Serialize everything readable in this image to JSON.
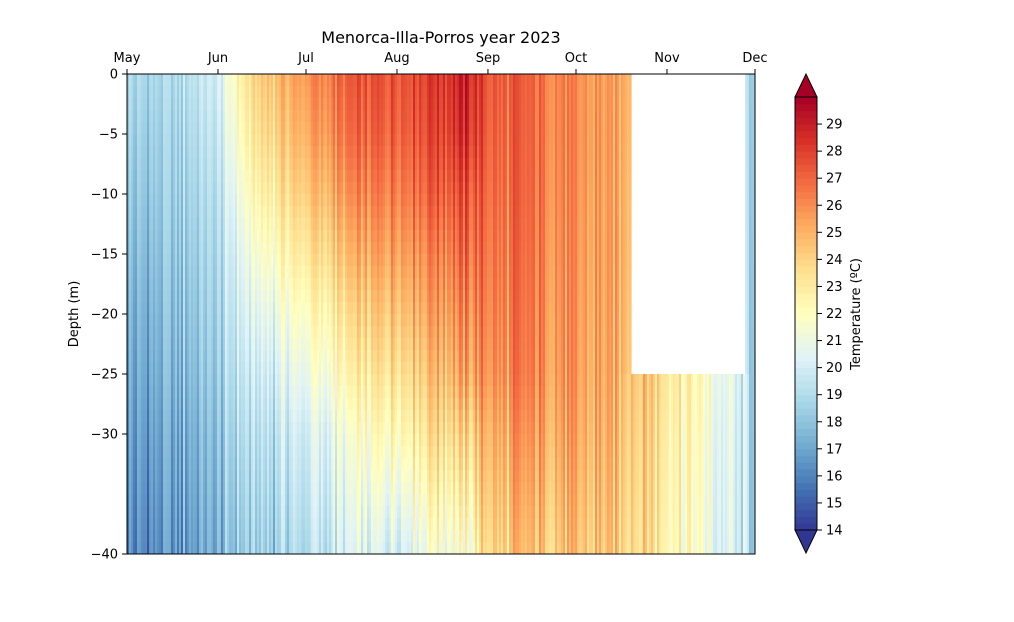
{
  "chart_data": {
    "type": "heatmap",
    "title": "Menorca-Illa-Porros year 2023",
    "xlabel": "",
    "ylabel": "Depth (m)",
    "x_ticks": [
      "May",
      "Jun",
      "Jul",
      "Aug",
      "Sep",
      "Oct",
      "Nov",
      "Dec"
    ],
    "x_range": [
      "2023-05-01",
      "2023-12-01"
    ],
    "x_axis_position": "top",
    "y_ticks": [
      0,
      -5,
      -10,
      -15,
      -20,
      -25,
      -30,
      -40
    ],
    "ylim": [
      -40,
      0
    ],
    "depth_levels_m": [
      0,
      -5,
      -10,
      -15,
      -20,
      -25,
      -30,
      -40
    ],
    "colorbar": {
      "label": "Temperature (ºC)",
      "range": [
        14,
        30
      ],
      "ticks": [
        14,
        15,
        16,
        17,
        18,
        19,
        20,
        21,
        22,
        23,
        24,
        25,
        26,
        27,
        28,
        29
      ],
      "extend": "both",
      "colormap": "RdYlBu_r"
    },
    "profiles": [
      {
        "date": "2023-05-01",
        "temps": [
          18.8,
          18.4,
          18.0,
          17.6,
          17.2,
          16.9,
          16.6,
          16.0
        ]
      },
      {
        "date": "2023-05-15",
        "temps": [
          18.8,
          18.5,
          18.3,
          18.0,
          17.7,
          17.4,
          17.0,
          16.4
        ]
      },
      {
        "date": "2023-06-01",
        "temps": [
          20.0,
          19.6,
          19.2,
          18.9,
          18.6,
          18.3,
          17.9,
          17.3
        ]
      },
      {
        "date": "2023-06-08",
        "temps": [
          22.5,
          21.8,
          21.0,
          20.3,
          19.8,
          19.3,
          18.8,
          18.0
        ]
      },
      {
        "date": "2023-06-15",
        "temps": [
          24.2,
          23.6,
          22.7,
          21.6,
          20.6,
          19.8,
          19.2,
          18.4
        ]
      },
      {
        "date": "2023-07-01",
        "temps": [
          25.8,
          25.2,
          24.3,
          23.2,
          22.0,
          21.0,
          20.0,
          19.0
        ]
      },
      {
        "date": "2023-07-15",
        "temps": [
          27.0,
          26.5,
          25.6,
          24.5,
          23.3,
          22.2,
          21.0,
          19.8
        ]
      },
      {
        "date": "2023-08-01",
        "temps": [
          27.8,
          27.5,
          26.8,
          26.0,
          25.0,
          24.0,
          22.8,
          20.5
        ]
      },
      {
        "date": "2023-08-15",
        "temps": [
          28.3,
          28.0,
          27.4,
          26.5,
          25.8,
          25.0,
          24.0,
          21.8
        ]
      },
      {
        "date": "2023-08-25",
        "temps": [
          29.0,
          28.6,
          27.6,
          27.0,
          26.2,
          25.5,
          24.0,
          21.5
        ]
      },
      {
        "date": "2023-09-01",
        "temps": [
          27.3,
          27.1,
          26.8,
          26.5,
          26.2,
          25.8,
          25.0,
          23.8
        ]
      },
      {
        "date": "2023-09-15",
        "temps": [
          26.8,
          26.7,
          26.6,
          26.4,
          26.2,
          26.0,
          25.4,
          24.2
        ]
      },
      {
        "date": "2023-10-01",
        "temps": [
          26.0,
          26.0,
          25.9,
          25.8,
          25.7,
          25.6,
          25.3,
          24.5
        ]
      },
      {
        "date": "2023-10-14",
        "temps": [
          25.4,
          25.4,
          25.3,
          25.3,
          25.2,
          25.1,
          24.9,
          24.3
        ]
      },
      {
        "date": "2023-10-25",
        "temps": [
          null,
          null,
          null,
          null,
          null,
          24.5,
          24.2,
          23.8
        ]
      },
      {
        "date": "2023-11-10",
        "temps": [
          null,
          null,
          null,
          null,
          null,
          22.5,
          22.2,
          21.8
        ]
      },
      {
        "date": "2023-11-25",
        "temps": [
          null,
          null,
          null,
          null,
          null,
          20.2,
          20.0,
          19.8
        ]
      },
      {
        "date": "2023-11-30",
        "temps": [
          19.0,
          19.0,
          19.0,
          19.0,
          19.0,
          19.0,
          19.0,
          19.0
        ]
      }
    ]
  }
}
